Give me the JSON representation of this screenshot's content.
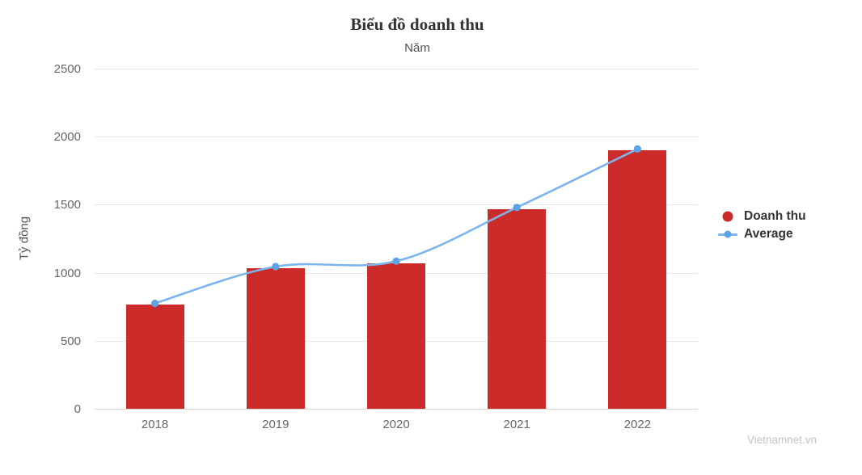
{
  "chart_data": {
    "type": "bar",
    "title": "Biểu đồ doanh thu",
    "subtitle": "Năm",
    "categories": [
      "2018",
      "2019",
      "2020",
      "2021",
      "2022"
    ],
    "series": [
      {
        "name": "Doanh thu",
        "type": "column",
        "color": "#cd2a2a",
        "values": [
          765,
          1035,
          1070,
          1470,
          1900
        ]
      },
      {
        "name": "Average",
        "type": "spline",
        "color": "#7cb5ec",
        "marker_color": "#5da2e2",
        "values": [
          775,
          1045,
          1085,
          1480,
          1910
        ]
      }
    ],
    "xlabel": "Năm",
    "ylabel": "Tỷ đồng",
    "ylim": [
      0,
      2500
    ],
    "ytick_step": 500,
    "yticks": [
      0,
      500,
      1000,
      1500,
      2000,
      2500
    ],
    "grid": true,
    "legend_position": "right"
  },
  "watermark": "Vietnamnet.vn",
  "colors": {
    "background": "#ffffff",
    "bar": "#cd2a2a",
    "line": "#7cb5ec",
    "marker": "#5da2e2",
    "grid": "#e6e6e6",
    "axis_line": "#d8d8d8",
    "tick_label": "#666666",
    "axis_title": "#555555",
    "title": "#333333",
    "subtitle": "#555555",
    "legend_text": "#333333",
    "watermark": "#c3c3c3"
  }
}
